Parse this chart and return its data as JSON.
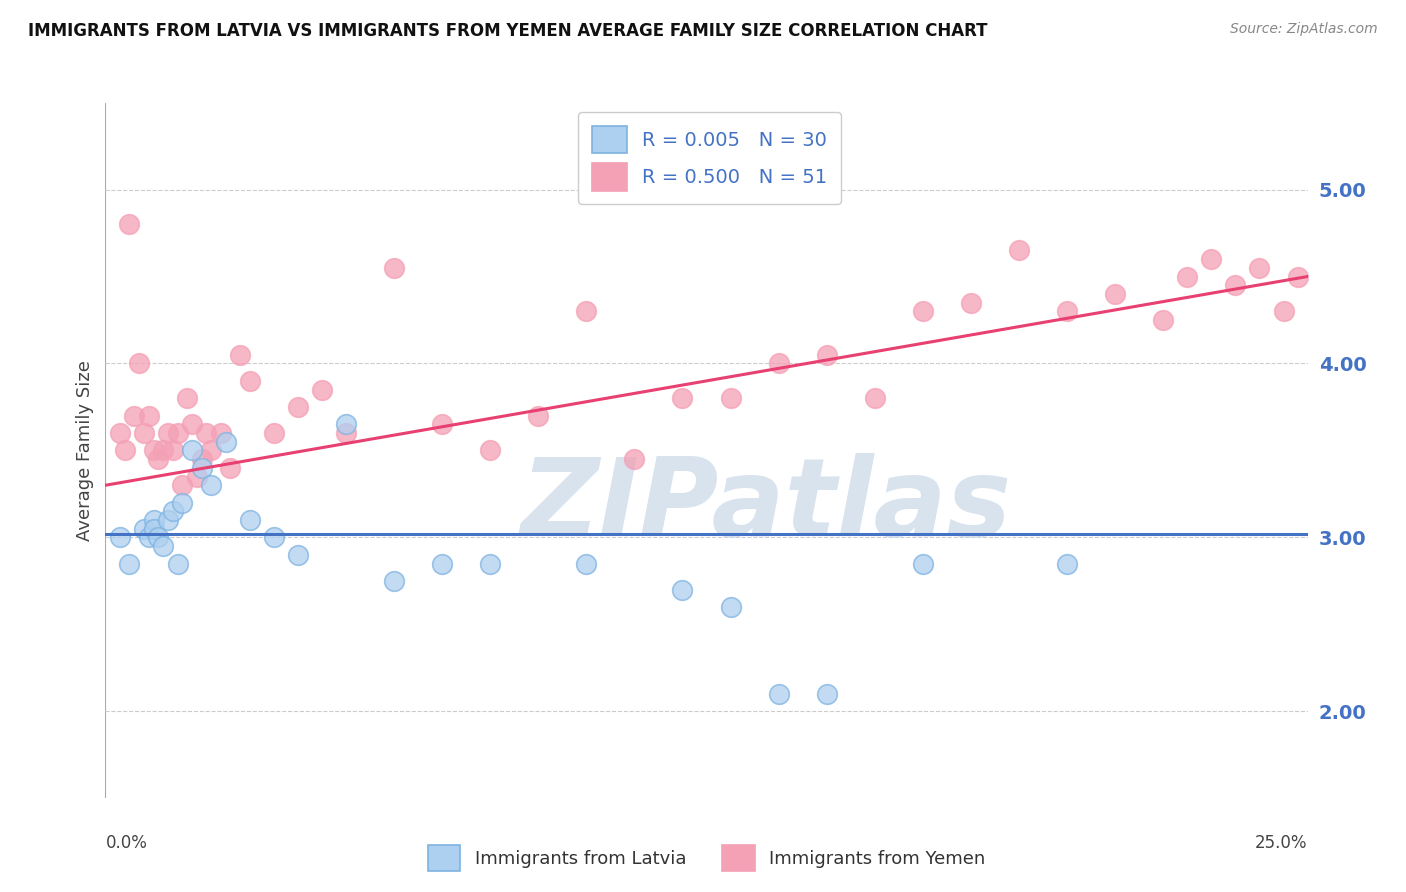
{
  "title": "IMMIGRANTS FROM LATVIA VS IMMIGRANTS FROM YEMEN AVERAGE FAMILY SIZE CORRELATION CHART",
  "source": "Source: ZipAtlas.com",
  "ylabel": "Average Family Size",
  "xlim": [
    0.0,
    25.0
  ],
  "ylim": [
    1.5,
    5.5
  ],
  "yticks_right": [
    2.0,
    3.0,
    4.0,
    5.0
  ],
  "background_color": "#ffffff",
  "grid_color": "#cccccc",
  "watermark": "ZIPatlas",
  "watermark_color": "#c8d8e8",
  "series": [
    {
      "name": "Immigrants from Latvia",
      "R": "0.005",
      "N": 30,
      "dot_face": "#aed0f0",
      "dot_edge": "#7eb3e0",
      "trend_color": "#4472c4",
      "trend_y_start": 3.02,
      "trend_y_end": 3.02,
      "points_x": [
        0.3,
        0.5,
        0.8,
        0.9,
        1.0,
        1.0,
        1.1,
        1.2,
        1.3,
        1.4,
        1.5,
        1.6,
        1.8,
        2.0,
        2.2,
        2.5,
        3.0,
        3.5,
        4.0,
        5.0,
        6.0,
        7.0,
        8.0,
        10.0,
        12.0,
        13.0,
        14.0,
        15.0,
        17.0,
        20.0
      ],
      "points_y": [
        3.0,
        2.85,
        3.05,
        3.0,
        3.1,
        3.05,
        3.0,
        2.95,
        3.1,
        3.15,
        2.85,
        3.2,
        3.5,
        3.4,
        3.3,
        3.55,
        3.1,
        3.0,
        2.9,
        3.65,
        2.75,
        2.85,
        2.85,
        2.85,
        2.7,
        2.6,
        2.1,
        2.1,
        2.85,
        2.85
      ]
    },
    {
      "name": "Immigrants from Yemen",
      "R": "0.500",
      "N": 51,
      "dot_face": "#f4a0b5",
      "dot_edge": "#f4a0b5",
      "trend_color": "#e84070",
      "trend_y_start": 3.3,
      "trend_y_end": 4.5,
      "points_x": [
        0.3,
        0.4,
        0.5,
        0.6,
        0.7,
        0.8,
        0.9,
        1.0,
        1.1,
        1.2,
        1.3,
        1.4,
        1.5,
        1.6,
        1.7,
        1.8,
        1.9,
        2.0,
        2.1,
        2.2,
        2.4,
        2.6,
        2.8,
        3.0,
        3.5,
        4.0,
        4.5,
        5.0,
        6.0,
        7.0,
        8.0,
        9.0,
        10.0,
        11.0,
        12.0,
        13.0,
        14.0,
        15.0,
        16.0,
        17.0,
        18.0,
        19.0,
        20.0,
        21.0,
        22.0,
        22.5,
        23.0,
        23.5,
        24.0,
        24.5,
        24.8
      ],
      "points_y": [
        3.6,
        3.5,
        4.8,
        3.7,
        4.0,
        3.6,
        3.7,
        3.5,
        3.45,
        3.5,
        3.6,
        3.5,
        3.6,
        3.3,
        3.8,
        3.65,
        3.35,
        3.45,
        3.6,
        3.5,
        3.6,
        3.4,
        4.05,
        3.9,
        3.6,
        3.75,
        3.85,
        3.6,
        4.55,
        3.65,
        3.5,
        3.7,
        4.3,
        3.45,
        3.8,
        3.8,
        4.0,
        4.05,
        3.8,
        4.3,
        4.35,
        4.65,
        4.3,
        4.4,
        4.25,
        4.5,
        4.6,
        4.45,
        4.55,
        4.3,
        4.5
      ]
    }
  ]
}
